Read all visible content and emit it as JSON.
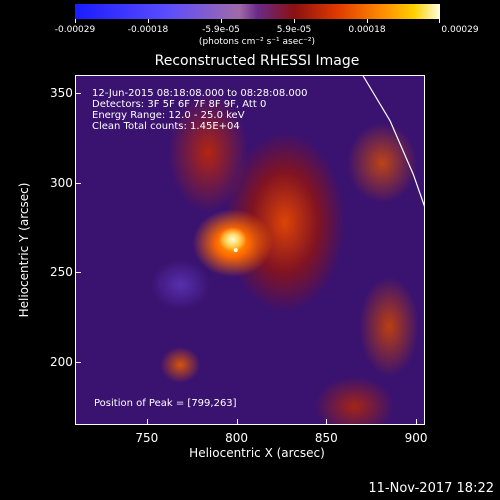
{
  "chart_data": {
    "type": "heatmap",
    "title": "Reconstructed RHESSI Image",
    "xlabel": "Heliocentric X (arcsec)",
    "ylabel": "Heliocentric Y (arcsec)",
    "xlim": [
      710,
      905
    ],
    "ylim": [
      165,
      360
    ],
    "x_ticks": [
      750,
      800,
      850,
      900
    ],
    "y_ticks": [
      200,
      250,
      300,
      350
    ],
    "colorbar": {
      "ticks": [
        "-0.00029",
        "-0.00018",
        "-5.9e-05",
        "5.9e-05",
        "0.00018",
        "0.00029"
      ],
      "units": "(photons cm⁻² s⁻¹ asec⁻²)"
    },
    "annotations": {
      "time": "12-Jun-2015 08:18:08.000 to 08:28:08.000",
      "detectors": "Detectors: 3F 5F 6F 7F 8F 9F, Att 0",
      "energy": "Energy Range: 12.0 - 25.0 keV",
      "clean": "Clean     Total counts: 1.45E+04",
      "peak": "Position of Peak = [799,263]"
    },
    "peak": [
      799,
      263
    ],
    "limb": [
      [
        870,
        360
      ],
      [
        885,
        335
      ],
      [
        898,
        305
      ],
      [
        905,
        285
      ]
    ],
    "colors": {
      "background": "#3a1270",
      "peak": "#fffbe0",
      "limb": "#ffffff"
    }
  },
  "footer": {
    "date": "11-Nov-2017 18:22"
  }
}
